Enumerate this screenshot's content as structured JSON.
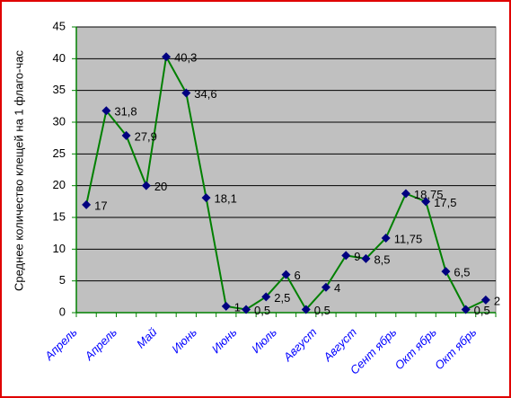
{
  "chart_data": {
    "type": "line",
    "y_label": "Среднее количество клещей на 1 флаго-час",
    "categories": [
      "Апрель",
      null,
      "Апрель",
      null,
      "Май",
      null,
      "Июнь",
      null,
      "Июнь",
      null,
      "Июль",
      null,
      "Август",
      null,
      "Август",
      null,
      "Сент ябрь",
      null,
      "Окт ябрь",
      null,
      "Окт ябрь"
    ],
    "values": [
      17,
      31.8,
      27.9,
      20,
      40.3,
      34.6,
      18.1,
      1,
      0.5,
      2.5,
      6,
      0.5,
      4,
      9,
      8.5,
      11.75,
      18.75,
      17.5,
      6.5,
      0.5,
      2
    ],
    "value_labels": [
      "17",
      "31,8",
      "27,9",
      "20",
      "40,3",
      "34,6",
      "18,1",
      "1",
      "0,5",
      "2,5",
      "6",
      "0,5",
      "4",
      "9",
      "8,5",
      "11,75",
      "18,75",
      "17,5",
      "6,5",
      "0,5",
      "2"
    ],
    "color": "#008000",
    "marker_color": "#000080",
    "ylim": [
      0,
      45
    ],
    "yticks": [
      0,
      5,
      10,
      15,
      20,
      25,
      30,
      35,
      40,
      45
    ],
    "grid": true
  }
}
